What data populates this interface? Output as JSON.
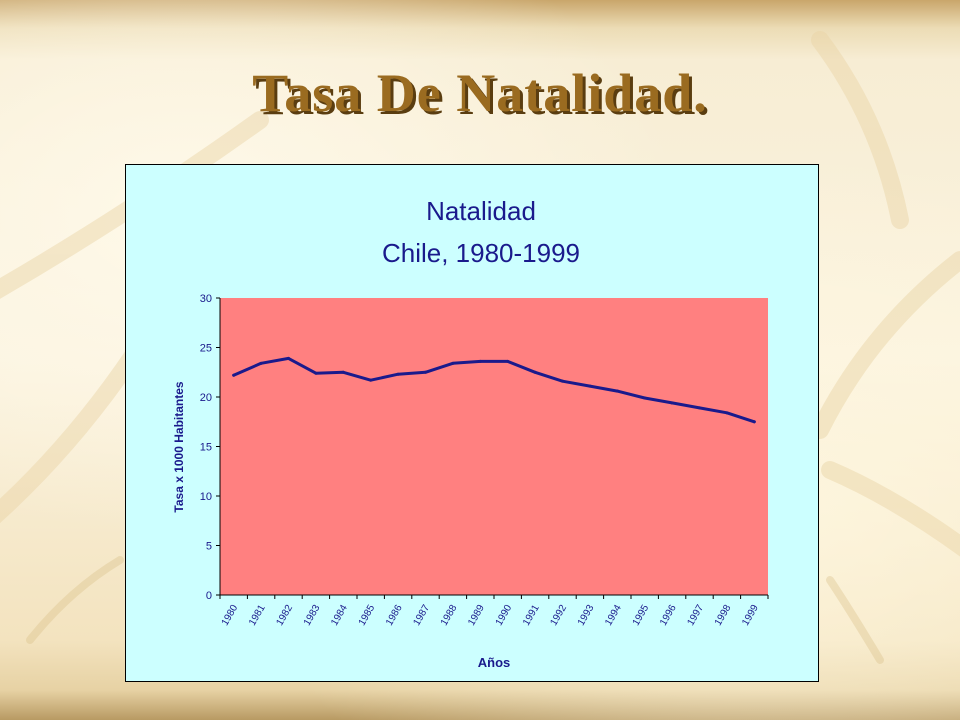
{
  "slide": {
    "title": "Tasa De Natalidad."
  },
  "colors": {
    "chart_background": "#ccffff",
    "plot_area": "#ff8080",
    "series_line": "#1a1a8c",
    "axis_text": "#1a1a8c",
    "title_text": "#1a1a8c",
    "slide_title": "#9a6b20"
  },
  "chart_data": {
    "type": "line",
    "title": "Natalidad",
    "subtitle": "Chile, 1980-1999",
    "xlabel": "Años",
    "ylabel": "Tasa x 1000 Habitantes",
    "ylim": [
      0,
      30
    ],
    "yticks": [
      0,
      5,
      10,
      15,
      20,
      25,
      30
    ],
    "grid": false,
    "legend": "none",
    "categories": [
      "1980",
      "1981",
      "1982",
      "1983",
      "1984",
      "1985",
      "1986",
      "1987",
      "1988",
      "1989",
      "1990",
      "1991",
      "1992",
      "1993",
      "1994",
      "1995",
      "1996",
      "1997",
      "1998",
      "1999"
    ],
    "series": [
      {
        "values": [
          22.2,
          23.4,
          23.9,
          22.4,
          22.5,
          21.7,
          22.3,
          22.5,
          23.4,
          23.6,
          23.6,
          22.5,
          21.6,
          21.1,
          20.6,
          19.9,
          19.4,
          18.9,
          18.4,
          17.5
        ]
      }
    ]
  }
}
